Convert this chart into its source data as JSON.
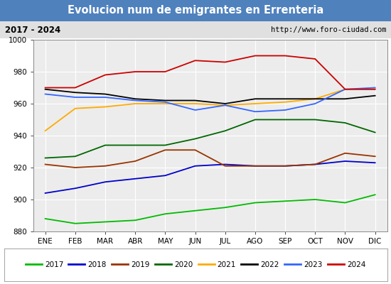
{
  "title": "Evolucion num de emigrantes en Errenteria",
  "subtitle_left": "2017 - 2024",
  "subtitle_right": "http://www.foro-ciudad.com",
  "ylim": [
    880,
    1000
  ],
  "yticks": [
    880,
    900,
    920,
    940,
    960,
    980,
    1000
  ],
  "months": [
    "ENE",
    "FEB",
    "MAR",
    "ABR",
    "MAY",
    "JUN",
    "JUL",
    "AGO",
    "SEP",
    "OCT",
    "NOV",
    "DIC"
  ],
  "title_bg": "#4f81bd",
  "title_color": "white",
  "plot_bg": "#ececec",
  "grid_color": "white",
  "series": {
    "2017": {
      "color": "#00bb00",
      "values": [
        888,
        885,
        886,
        887,
        891,
        893,
        895,
        898,
        899,
        900,
        898,
        903
      ]
    },
    "2018": {
      "color": "#0000cc",
      "values": [
        904,
        907,
        911,
        913,
        915,
        921,
        922,
        921,
        921,
        922,
        924,
        923
      ]
    },
    "2019": {
      "color": "#993300",
      "values": [
        922,
        920,
        921,
        924,
        931,
        931,
        921,
        921,
        921,
        922,
        929,
        927
      ]
    },
    "2020": {
      "color": "#006600",
      "values": [
        926,
        927,
        934,
        934,
        934,
        938,
        943,
        950,
        950,
        950,
        948,
        942
      ]
    },
    "2021": {
      "color": "#ffaa00",
      "values": [
        943,
        957,
        958,
        960,
        960,
        960,
        959,
        960,
        961,
        963,
        969,
        969
      ]
    },
    "2022": {
      "color": "#000000",
      "values": [
        969,
        967,
        966,
        963,
        962,
        962,
        960,
        963,
        963,
        963,
        963,
        965
      ]
    },
    "2023": {
      "color": "#3366ff",
      "values": [
        966,
        964,
        964,
        962,
        961,
        956,
        959,
        955,
        956,
        960,
        969,
        970
      ]
    },
    "2024": {
      "color": "#cc0000",
      "values": [
        970,
        970,
        978,
        980,
        980,
        987,
        986,
        990,
        990,
        988,
        969,
        969
      ]
    }
  },
  "legend_order": [
    "2017",
    "2018",
    "2019",
    "2020",
    "2021",
    "2022",
    "2023",
    "2024"
  ]
}
